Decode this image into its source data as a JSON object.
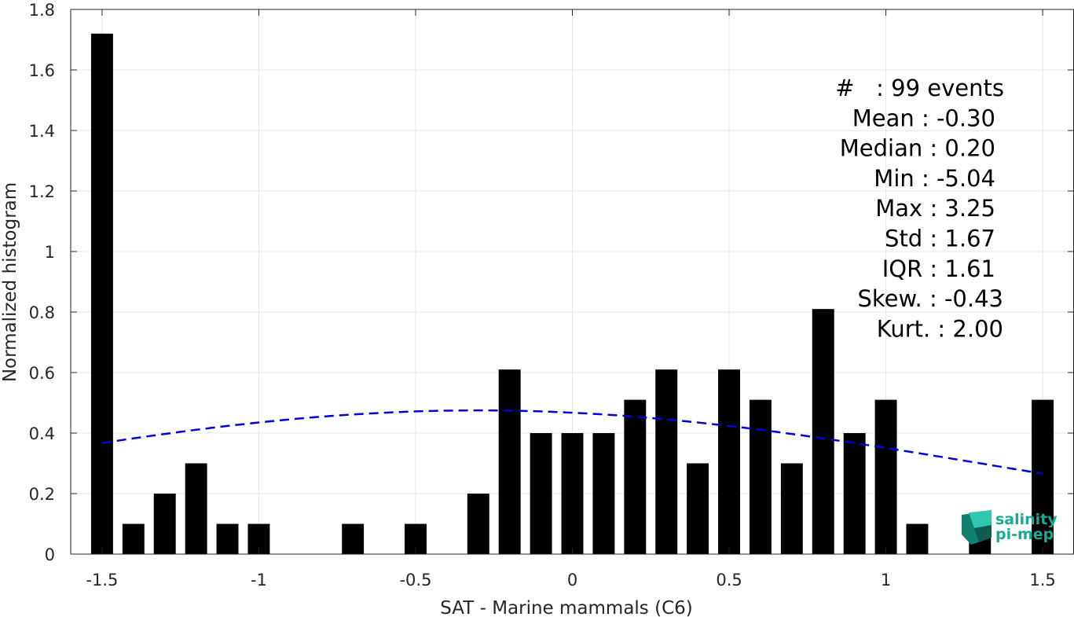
{
  "chart_data": {
    "type": "bar",
    "xlabel": "SAT - Marine mammals (C6)",
    "ylabel": "Normalized histogram",
    "xlim": [
      -1.6,
      1.6
    ],
    "ylim": [
      0,
      1.8
    ],
    "xticks": [
      -1.5,
      -1,
      -0.5,
      0,
      0.5,
      1,
      1.5
    ],
    "xtick_labels": [
      "-1.5",
      "-1",
      "-0.5",
      "0",
      "0.5",
      "1",
      "1.5"
    ],
    "yticks": [
      0,
      0.2,
      0.4,
      0.6,
      0.8,
      1,
      1.2,
      1.4,
      1.6,
      1.8
    ],
    "ytick_labels": [
      "0",
      "0.2",
      "0.4",
      "0.6",
      "0.8",
      "1",
      "1.2",
      "1.4",
      "1.6",
      "1.8"
    ],
    "grid": true,
    "bar_width": 0.07,
    "bar_color": "#000000",
    "bars": [
      {
        "x": -1.5,
        "y": 1.72
      },
      {
        "x": -1.4,
        "y": 0.1
      },
      {
        "x": -1.3,
        "y": 0.2
      },
      {
        "x": -1.2,
        "y": 0.3
      },
      {
        "x": -1.1,
        "y": 0.1
      },
      {
        "x": -1.0,
        "y": 0.1
      },
      {
        "x": -0.7,
        "y": 0.1
      },
      {
        "x": -0.5,
        "y": 0.1
      },
      {
        "x": -0.3,
        "y": 0.2
      },
      {
        "x": -0.2,
        "y": 0.61
      },
      {
        "x": -0.1,
        "y": 0.4
      },
      {
        "x": 0.0,
        "y": 0.4
      },
      {
        "x": 0.1,
        "y": 0.4
      },
      {
        "x": 0.2,
        "y": 0.51
      },
      {
        "x": 0.3,
        "y": 0.61
      },
      {
        "x": 0.4,
        "y": 0.3
      },
      {
        "x": 0.5,
        "y": 0.61
      },
      {
        "x": 0.6,
        "y": 0.51
      },
      {
        "x": 0.7,
        "y": 0.3
      },
      {
        "x": 0.8,
        "y": 0.81
      },
      {
        "x": 0.9,
        "y": 0.4
      },
      {
        "x": 1.0,
        "y": 0.51
      },
      {
        "x": 1.1,
        "y": 0.1
      },
      {
        "x": 1.3,
        "y": 0.1
      },
      {
        "x": 1.5,
        "y": 0.51
      }
    ],
    "fit_curve": {
      "style": "dashed",
      "color": "#0000dd",
      "mean": -0.3,
      "std": 1.67,
      "scale": 0.475,
      "x_range": [
        -1.5,
        1.5
      ]
    },
    "annotations": [
      "#   : 99 events",
      "Mean : -0.30",
      "Median : 0.20",
      "Min : -5.04",
      "Max : 3.25",
      "Std : 1.67",
      "IQR : 1.61",
      "Skew. : -0.43",
      "Kurt. : 2.00"
    ]
  },
  "logo": {
    "line1": "salinity",
    "line2": "pi-mep",
    "color": "#1aaa96"
  }
}
